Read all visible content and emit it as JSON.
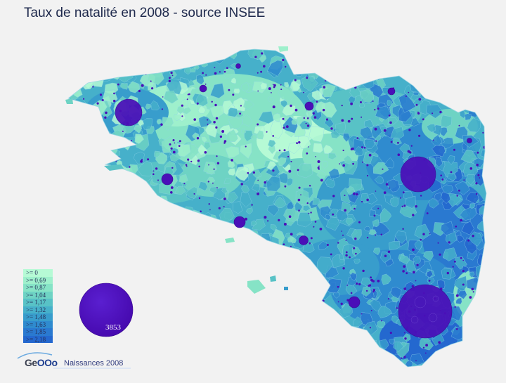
{
  "title": "Taux de natalité en 2008 - source INSEE",
  "legend": {
    "classes": [
      {
        "label": ">= 0",
        "color": "#b6fad5"
      },
      {
        "label": ">= 0,69",
        "color": "#9ef0cc"
      },
      {
        "label": ">= 0,87",
        "color": "#86e3c6"
      },
      {
        "label": ">= 1,04",
        "color": "#6ed3c4"
      },
      {
        "label": ">= 1,17",
        "color": "#58c2c6"
      },
      {
        "label": ">= 1,32",
        "color": "#46b0ca"
      },
      {
        "label": ">= 1,48",
        "color": "#389dcc"
      },
      {
        "label": ">= 1,63",
        "color": "#2f8bcf"
      },
      {
        "label": ">= 1,85",
        "color": "#2a79d0"
      },
      {
        "label": ">= 2,18",
        "color": "#2468cf"
      }
    ]
  },
  "proportional_symbol": {
    "reference_value": "3853",
    "color": "#4a0fb8"
  },
  "logo": {
    "prefix": "Ge",
    "suffix": "OOo"
  },
  "caption": "Naissances 2008",
  "colors": {
    "background": "#f2f2f2",
    "bubble": "#4a0fb8",
    "title": "#1f2a4d"
  }
}
